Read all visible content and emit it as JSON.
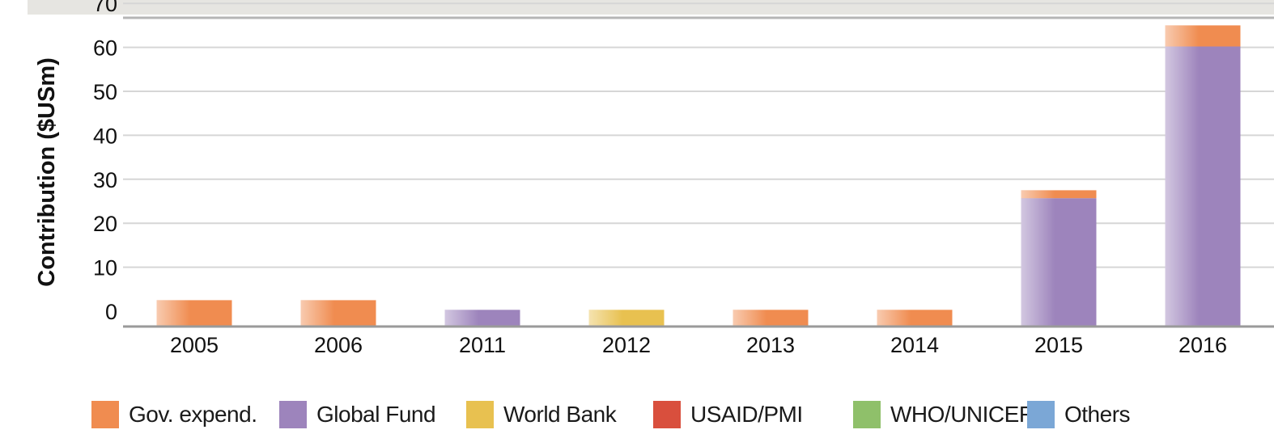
{
  "chart_data": {
    "type": "bar",
    "stacked": true,
    "title": "",
    "xlabel": "",
    "ylabel": "Contribution ($USm)",
    "ylim": [
      0,
      70
    ],
    "yticks": [
      0,
      10,
      20,
      30,
      40,
      50,
      60,
      70
    ],
    "grid": true,
    "legend_position": "bottom",
    "categories": [
      "2005",
      "2006",
      "2011",
      "2012",
      "2013",
      "2014",
      "2015",
      "2016"
    ],
    "series": [
      {
        "name": "Gov. expend.",
        "color": "#f08c50",
        "values": [
          2.5,
          2.5,
          0,
          0,
          0.3,
          0.3,
          1.8,
          4.8
        ]
      },
      {
        "name": "Global Fund",
        "color": "#9d84bc",
        "values": [
          0,
          0,
          0.3,
          0,
          0,
          0,
          25.7,
          60.2
        ]
      },
      {
        "name": "World Bank",
        "color": "#e8c150",
        "values": [
          0,
          0,
          0,
          0.3,
          0,
          0,
          0,
          0
        ]
      },
      {
        "name": "USAID/PMI",
        "color": "#d94f3d",
        "values": [
          0,
          0,
          0,
          0,
          0,
          0,
          0,
          0
        ]
      },
      {
        "name": "WHO/UNICEF",
        "color": "#8fc06a",
        "values": [
          0,
          0,
          0,
          0,
          0,
          0,
          0,
          0
        ]
      },
      {
        "name": "Others",
        "color": "#7ba7d6",
        "values": [
          0,
          0,
          0,
          0,
          0,
          0,
          0,
          0
        ]
      }
    ]
  }
}
